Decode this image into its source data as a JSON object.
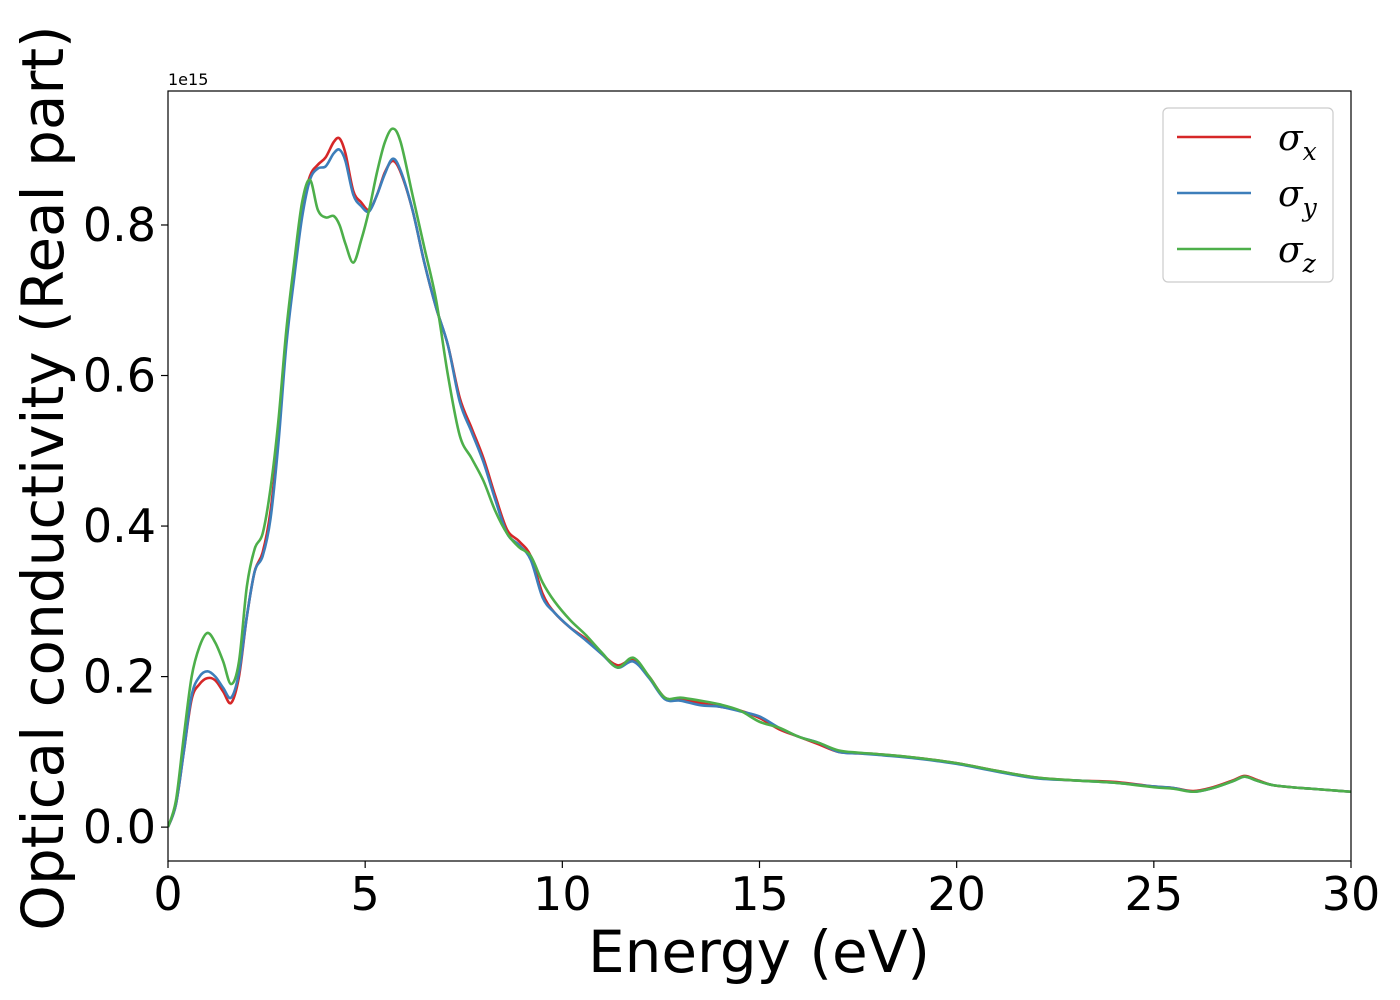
{
  "chart_data": {
    "type": "line",
    "title": "",
    "xlabel": "Energy (eV)",
    "ylabel": "Optical conductivity (Real part)",
    "y_offset_text": "1e15",
    "xlim": [
      0,
      30
    ],
    "ylim": [
      -0.045,
      0.978
    ],
    "xticks": [
      "0",
      "5",
      "10",
      "15",
      "20",
      "25",
      "30"
    ],
    "yticks": [
      "0.0",
      "0.2",
      "0.4",
      "0.6",
      "0.8"
    ],
    "grid": false,
    "legend_position": "top-right",
    "series": [
      {
        "name": "σ_x",
        "legend_symbol": "σ",
        "legend_sub": "x",
        "color": "#d62728",
        "x": [
          0,
          0.2,
          0.4,
          0.6,
          0.8,
          1.0,
          1.2,
          1.4,
          1.6,
          1.8,
          2.0,
          2.2,
          2.4,
          2.6,
          2.8,
          3.0,
          3.2,
          3.4,
          3.6,
          3.8,
          4.0,
          4.2,
          4.35,
          4.5,
          4.7,
          4.9,
          5.1,
          5.3,
          5.5,
          5.7,
          5.9,
          6.2,
          6.5,
          6.8,
          7.1,
          7.4,
          7.7,
          8.0,
          8.3,
          8.6,
          8.9,
          9.2,
          9.5,
          9.8,
          10.2,
          10.6,
          11.0,
          11.4,
          11.8,
          12.2,
          12.6,
          13.0,
          13.5,
          14.0,
          14.5,
          15.0,
          15.5,
          16.0,
          16.5,
          17.0,
          17.5,
          18.0,
          19.0,
          20.0,
          21.0,
          22.0,
          23.0,
          24.0,
          25.0,
          25.5,
          26.0,
          26.5,
          27.0,
          27.3,
          27.6,
          28.0,
          28.5,
          29.0,
          29.5,
          30.0
        ],
        "y": [
          0.0,
          0.03,
          0.1,
          0.17,
          0.19,
          0.198,
          0.195,
          0.18,
          0.165,
          0.2,
          0.28,
          0.34,
          0.365,
          0.42,
          0.52,
          0.65,
          0.74,
          0.82,
          0.865,
          0.88,
          0.89,
          0.91,
          0.915,
          0.895,
          0.845,
          0.83,
          0.82,
          0.84,
          0.87,
          0.885,
          0.87,
          0.82,
          0.75,
          0.69,
          0.64,
          0.57,
          0.53,
          0.49,
          0.44,
          0.395,
          0.38,
          0.36,
          0.31,
          0.285,
          0.265,
          0.25,
          0.23,
          0.215,
          0.222,
          0.2,
          0.172,
          0.17,
          0.165,
          0.16,
          0.155,
          0.145,
          0.13,
          0.12,
          0.11,
          0.1,
          0.098,
          0.097,
          0.092,
          0.085,
          0.075,
          0.066,
          0.062,
          0.06,
          0.054,
          0.052,
          0.048,
          0.053,
          0.062,
          0.068,
          0.063,
          0.056,
          0.053,
          0.051,
          0.049,
          0.047
        ]
      },
      {
        "name": "σ_y",
        "legend_symbol": "σ",
        "legend_sub": "y",
        "color": "#3d7eba",
        "x": [
          0,
          0.2,
          0.4,
          0.6,
          0.8,
          1.0,
          1.2,
          1.4,
          1.6,
          1.8,
          2.0,
          2.2,
          2.4,
          2.6,
          2.8,
          3.0,
          3.2,
          3.4,
          3.6,
          3.8,
          4.0,
          4.2,
          4.35,
          4.5,
          4.7,
          4.9,
          5.1,
          5.3,
          5.5,
          5.7,
          5.9,
          6.2,
          6.5,
          6.8,
          7.1,
          7.4,
          7.7,
          8.0,
          8.3,
          8.6,
          8.9,
          9.2,
          9.5,
          9.8,
          10.2,
          10.6,
          11.0,
          11.4,
          11.8,
          12.2,
          12.6,
          13.0,
          13.5,
          14.0,
          14.5,
          15.0,
          15.5,
          16.0,
          16.5,
          17.0,
          17.5,
          18.0,
          19.0,
          20.0,
          21.0,
          22.0,
          23.0,
          24.0,
          25.0,
          25.5,
          26.0,
          26.5,
          27.0,
          27.3,
          27.6,
          28.0,
          28.5,
          29.0,
          29.5,
          30.0
        ],
        "y": [
          0.0,
          0.03,
          0.1,
          0.175,
          0.2,
          0.207,
          0.2,
          0.185,
          0.172,
          0.205,
          0.28,
          0.34,
          0.36,
          0.41,
          0.51,
          0.64,
          0.73,
          0.81,
          0.86,
          0.875,
          0.878,
          0.895,
          0.9,
          0.885,
          0.84,
          0.825,
          0.818,
          0.84,
          0.868,
          0.888,
          0.872,
          0.82,
          0.75,
          0.69,
          0.64,
          0.565,
          0.525,
          0.485,
          0.435,
          0.39,
          0.375,
          0.355,
          0.305,
          0.285,
          0.265,
          0.248,
          0.23,
          0.212,
          0.22,
          0.198,
          0.17,
          0.168,
          0.162,
          0.16,
          0.154,
          0.147,
          0.132,
          0.12,
          0.112,
          0.1,
          0.098,
          0.096,
          0.091,
          0.084,
          0.074,
          0.065,
          0.062,
          0.059,
          0.054,
          0.052,
          0.047,
          0.052,
          0.061,
          0.067,
          0.062,
          0.056,
          0.053,
          0.051,
          0.049,
          0.047
        ]
      },
      {
        "name": "σ_z",
        "legend_symbol": "σ",
        "legend_sub": "z",
        "color": "#4daf4a",
        "x": [
          0,
          0.2,
          0.4,
          0.6,
          0.8,
          1.0,
          1.2,
          1.4,
          1.6,
          1.8,
          2.0,
          2.2,
          2.4,
          2.6,
          2.8,
          3.0,
          3.2,
          3.4,
          3.6,
          3.8,
          4.0,
          4.2,
          4.35,
          4.5,
          4.7,
          4.9,
          5.1,
          5.3,
          5.5,
          5.7,
          5.9,
          6.2,
          6.5,
          6.8,
          7.1,
          7.4,
          7.7,
          8.0,
          8.3,
          8.6,
          8.9,
          9.2,
          9.5,
          9.8,
          10.2,
          10.6,
          11.0,
          11.4,
          11.8,
          12.2,
          12.6,
          13.0,
          13.5,
          14.0,
          14.5,
          15.0,
          15.5,
          16.0,
          16.5,
          17.0,
          17.5,
          18.0,
          19.0,
          20.0,
          21.0,
          22.0,
          23.0,
          24.0,
          25.0,
          25.5,
          26.0,
          26.5,
          27.0,
          27.3,
          27.6,
          28.0,
          28.5,
          29.0,
          29.5,
          30.0
        ],
        "y": [
          0.0,
          0.035,
          0.12,
          0.2,
          0.24,
          0.258,
          0.245,
          0.22,
          0.19,
          0.22,
          0.32,
          0.37,
          0.39,
          0.45,
          0.54,
          0.66,
          0.75,
          0.83,
          0.86,
          0.82,
          0.81,
          0.812,
          0.8,
          0.775,
          0.75,
          0.78,
          0.82,
          0.87,
          0.91,
          0.928,
          0.91,
          0.84,
          0.77,
          0.7,
          0.6,
          0.52,
          0.49,
          0.46,
          0.42,
          0.39,
          0.372,
          0.36,
          0.325,
          0.3,
          0.275,
          0.255,
          0.232,
          0.212,
          0.225,
          0.2,
          0.172,
          0.172,
          0.168,
          0.163,
          0.155,
          0.14,
          0.132,
          0.12,
          0.112,
          0.102,
          0.099,
          0.097,
          0.092,
          0.085,
          0.075,
          0.066,
          0.062,
          0.059,
          0.053,
          0.051,
          0.047,
          0.052,
          0.061,
          0.067,
          0.062,
          0.056,
          0.053,
          0.051,
          0.049,
          0.047
        ]
      }
    ]
  }
}
